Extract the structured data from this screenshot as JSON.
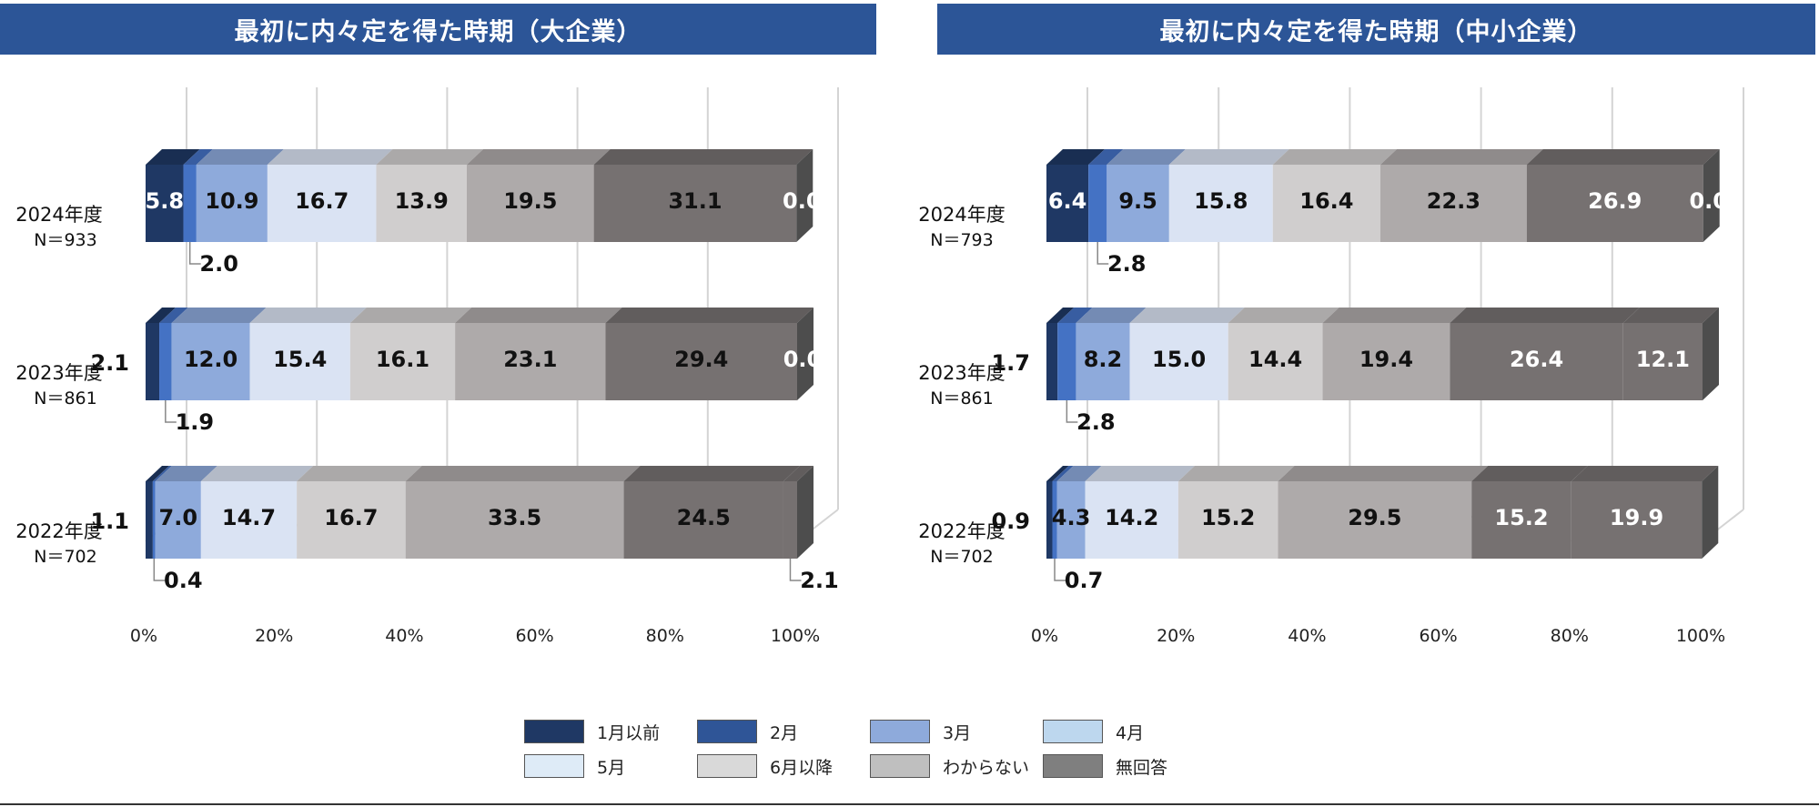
{
  "colors": {
    "title_bg": "#2c5597",
    "categories": [
      "#1f3864",
      "#2f5597",
      "#8eaadb",
      "#bdd7ee",
      "#deebf7",
      "#d9d9d9",
      "#bfbfbf",
      "#7f7f7f"
    ],
    "bar_fill": [
      "#1f3864",
      "#4472c4",
      "#8eaadb",
      "#dae3f3",
      "#d0cece",
      "#aeaaaa",
      "#767171",
      "#767171"
    ],
    "label_white": "#ffffff",
    "label_dark": "#111111"
  },
  "legend": {
    "items": [
      "1月以前",
      "2月",
      "3月",
      "4月",
      "5月",
      "6月以降",
      "わからない",
      "無回答"
    ]
  },
  "chart_data": [
    {
      "type": "bar",
      "orientation": "horizontal",
      "stacked": true,
      "percent": true,
      "title": "最初に内々定を得た時期（大企業）",
      "categories": [
        "2024年度",
        "2023年度",
        "2022年度"
      ],
      "n_labels": [
        "N＝933",
        "N＝861",
        "N＝702"
      ],
      "x_ticks": [
        "0%",
        "20%",
        "40%",
        "60%",
        "80%",
        "100%"
      ],
      "xlim": [
        0,
        100
      ],
      "series": [
        {
          "name": "1月以前",
          "values": [
            5.8,
            2.1,
            1.1
          ]
        },
        {
          "name": "2月",
          "values": [
            2.0,
            1.9,
            0.4
          ]
        },
        {
          "name": "3月",
          "values": [
            10.9,
            12.0,
            7.0
          ]
        },
        {
          "name": "4月",
          "values": [
            16.7,
            15.4,
            14.7
          ]
        },
        {
          "name": "5月",
          "values": [
            13.9,
            16.1,
            16.7
          ]
        },
        {
          "name": "6月以降",
          "values": [
            19.5,
            23.1,
            33.5
          ]
        },
        {
          "name": "わからない",
          "values": [
            31.1,
            29.4,
            24.5
          ]
        },
        {
          "name": "無回答",
          "values": [
            0.0,
            0.0,
            2.1
          ]
        }
      ]
    },
    {
      "type": "bar",
      "orientation": "horizontal",
      "stacked": true,
      "percent": true,
      "title": "最初に内々定を得た時期（中小企業）",
      "categories": [
        "2024年度",
        "2023年度",
        "2022年度"
      ],
      "n_labels": [
        "N＝793",
        "N＝861",
        "N＝702"
      ],
      "x_ticks": [
        "0%",
        "20%",
        "40%",
        "60%",
        "80%",
        "100%"
      ],
      "xlim": [
        0,
        100
      ],
      "series": [
        {
          "name": "1月以前",
          "values": [
            6.4,
            1.7,
            0.9
          ]
        },
        {
          "name": "2月",
          "values": [
            2.8,
            2.8,
            0.7
          ]
        },
        {
          "name": "3月",
          "values": [
            9.5,
            8.2,
            4.3
          ]
        },
        {
          "name": "4月",
          "values": [
            15.8,
            15.0,
            14.2
          ]
        },
        {
          "name": "5月",
          "values": [
            16.4,
            14.4,
            15.2
          ]
        },
        {
          "name": "6月以降",
          "values": [
            22.3,
            19.4,
            29.5
          ]
        },
        {
          "name": "わからない",
          "values": [
            26.9,
            26.4,
            15.2
          ]
        },
        {
          "name": "無回答",
          "values": [
            0.0,
            12.1,
            19.9
          ]
        }
      ]
    }
  ]
}
